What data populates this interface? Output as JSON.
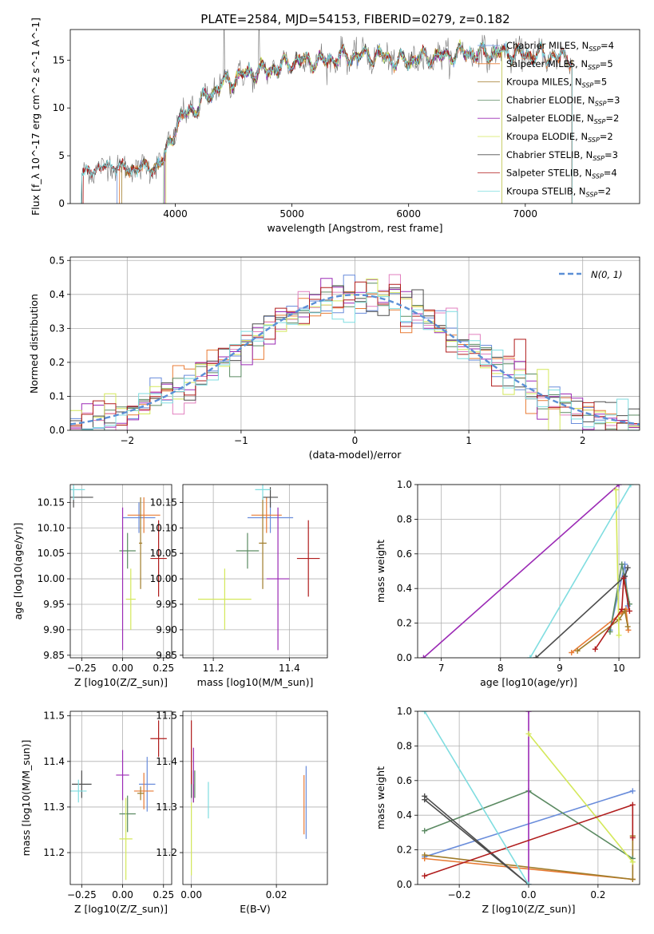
{
  "figure": {
    "title": "PLATE=2584, MJD=54153, FIBERID=0279, z=0.182"
  },
  "models": [
    {
      "key": "chab_miles",
      "label": "Chabrier MILES, N_SSP=4",
      "color": "#6a8ddb"
    },
    {
      "key": "salp_miles",
      "label": "Salpeter MILES, N_SSP=5",
      "color": "#e87b35"
    },
    {
      "key": "krou_miles",
      "label": "Kroupa MILES, N_SSP=5",
      "color": "#a07c2a"
    },
    {
      "key": "chab_elodie",
      "label": "Chabrier ELODIE, N_SSP=3",
      "color": "#5b8a62"
    },
    {
      "key": "salp_elodie",
      "label": "Salpeter ELODIE, N_SSP=2",
      "color": "#9b2ab5"
    },
    {
      "key": "krou_elodie",
      "label": "Kroupa ELODIE, N_SSP=2",
      "color": "#d4e85a"
    },
    {
      "key": "chab_stelib",
      "label": "Chabrier STELIB, N_SSP=3",
      "color": "#4d4d4d"
    },
    {
      "key": "salp_stelib",
      "label": "Salpeter STELIB, N_SSP=4",
      "color": "#b01c1c"
    },
    {
      "key": "krou_stelib",
      "label": "Kroupa STELIB, N_SSP=2",
      "color": "#7fdde0"
    }
  ],
  "chart_data": [
    {
      "id": "spectrum",
      "type": "line",
      "title": "PLATE=2584, MJD=54153, FIBERID=0279, z=0.182",
      "xlabel": "wavelength [Angstrom, rest frame]",
      "ylabel": "Flux [f_λ 10^-17 erg cm^-2 s^-1 A^-1]",
      "xlim": [
        3100,
        7980
      ],
      "ylim": [
        0,
        18.2
      ],
      "xticks": [
        4000,
        5000,
        6000,
        7000
      ],
      "yticks": [
        0,
        5,
        10,
        15
      ],
      "grid": false,
      "legend": "upper right",
      "data_continuum": {
        "x": [
          3200,
          3300,
          3400,
          3500,
          3600,
          3700,
          3800,
          3900,
          4000,
          4100,
          4200,
          4300,
          4400,
          4500,
          4600,
          4700,
          4800,
          4900,
          5000,
          5100,
          5200,
          5300,
          5400,
          5500,
          5600,
          5700,
          5800,
          5900,
          6000,
          6100,
          6200,
          6300,
          6400,
          6500,
          6600,
          6700,
          6800,
          6900,
          7000,
          7100,
          7200,
          7300,
          7400
        ],
        "y": [
          3.0,
          3.5,
          3.9,
          4.0,
          3.5,
          3.8,
          3.7,
          4.5,
          8.0,
          9.5,
          10.2,
          11.5,
          12.5,
          13.0,
          13.5,
          13.8,
          14.0,
          14.3,
          14.8,
          15.0,
          14.8,
          15.0,
          15.3,
          15.4,
          15.5,
          15.5,
          15.3,
          14.8,
          15.0,
          15.2,
          15.3,
          15.4,
          15.6,
          15.8,
          15.6,
          15.7,
          15.8,
          15.7,
          15.5,
          15.5,
          15.4,
          15.3,
          15.2
        ]
      },
      "model_start": {
        "chab_miles": 3500,
        "salp_miles": 3520,
        "krou_miles": 3540,
        "chab_elodie": 3900,
        "salp_elodie": 3910,
        "krou_elodie": 3920,
        "chab_stelib": 3200,
        "salp_stelib": 3210,
        "krou_stelib": 3190
      },
      "model_end": {
        "chab_miles": 7400,
        "salp_miles": 7400,
        "krou_miles": 7400,
        "chab_elodie": 6800,
        "salp_elodie": 6800,
        "krou_elodie": 6800,
        "chab_stelib": 7400,
        "salp_stelib": 7400,
        "krou_stelib": 7400
      }
    },
    {
      "id": "residuals",
      "type": "histogram",
      "xlabel": "(data-model)/error",
      "ylabel": "Normed distribution",
      "xlim": [
        -2.5,
        2.5
      ],
      "ylim": [
        0,
        0.51
      ],
      "xticks": [
        -2,
        -1,
        0,
        1,
        2
      ],
      "yticks": [
        0.0,
        0.1,
        0.2,
        0.3,
        0.4,
        0.5
      ],
      "grid": true,
      "legend": "upper right",
      "reference_label": "N(0, 1)",
      "bin_width": 0.1
    },
    {
      "id": "age_vs_Z",
      "type": "scatter",
      "xlabel": "Z [log10(Z/Z_sun)]",
      "ylabel": "age [log10(age/yr)]",
      "xlim": [
        -0.32,
        0.3
      ],
      "ylim": [
        9.845,
        10.185
      ],
      "xticks": [
        -0.25,
        0.0,
        0.25
      ],
      "yticks": [
        9.85,
        9.9,
        9.95,
        10.0,
        10.05,
        10.1,
        10.15
      ],
      "grid": true,
      "points": [
        {
          "model": "chab_miles",
          "x": 0.1,
          "xerr": 0.1,
          "y": 10.12,
          "yerr": 0.03
        },
        {
          "model": "salp_miles",
          "x": 0.13,
          "xerr": 0.1,
          "y": 10.125,
          "yerr": 0.035
        },
        {
          "model": "krou_miles",
          "x": 0.11,
          "xerr": 0.01,
          "y": 10.07,
          "yerr": 0.09
        },
        {
          "model": "chab_elodie",
          "x": 0.03,
          "xerr": 0.05,
          "y": 10.055,
          "yerr": 0.035
        },
        {
          "model": "salp_elodie",
          "x": 0.0,
          "xerr": 0.0,
          "y": 10.0,
          "yerr": 0.14
        },
        {
          "model": "krou_elodie",
          "x": 0.05,
          "xerr": 0.03,
          "y": 9.96,
          "yerr": 0.06
        },
        {
          "model": "chab_stelib",
          "x": -0.3,
          "xerr": 0.12,
          "y": 10.16,
          "yerr": 0.02
        },
        {
          "model": "salp_stelib",
          "x": 0.22,
          "xerr": 0.05,
          "y": 10.04,
          "yerr": 0.075
        },
        {
          "model": "krou_stelib",
          "x": -0.3,
          "xerr": 0.07,
          "y": 10.175,
          "yerr": 0.02
        }
      ]
    },
    {
      "id": "age_vs_mass",
      "type": "scatter",
      "xlabel": "mass [log10(M/M_sun)]",
      "ylabel": "",
      "xlim": [
        11.12,
        11.5
      ],
      "ylim": [
        9.845,
        10.185
      ],
      "xticks": [
        11.2,
        11.4
      ],
      "yticks": [
        9.85,
        9.9,
        9.95,
        10.0,
        10.05,
        10.1,
        10.15
      ],
      "grid": true,
      "points": [
        {
          "model": "chab_miles",
          "x": 11.35,
          "xerr": 0.06,
          "y": 10.12,
          "yerr": 0.03
        },
        {
          "model": "salp_miles",
          "x": 11.34,
          "xerr": 0.04,
          "y": 10.125,
          "yerr": 0.035
        },
        {
          "model": "krou_miles",
          "x": 11.33,
          "xerr": 0.01,
          "y": 10.07,
          "yerr": 0.09
        },
        {
          "model": "chab_elodie",
          "x": 11.29,
          "xerr": 0.03,
          "y": 10.055,
          "yerr": 0.035
        },
        {
          "model": "salp_elodie",
          "x": 11.37,
          "xerr": 0.03,
          "y": 10.0,
          "yerr": 0.14
        },
        {
          "model": "krou_elodie",
          "x": 11.23,
          "xerr": 0.07,
          "y": 9.96,
          "yerr": 0.06
        },
        {
          "model": "chab_stelib",
          "x": 11.35,
          "xerr": 0.02,
          "y": 10.16,
          "yerr": 0.02
        },
        {
          "model": "salp_stelib",
          "x": 11.45,
          "xerr": 0.03,
          "y": 10.04,
          "yerr": 0.075
        },
        {
          "model": "krou_stelib",
          "x": 11.33,
          "xerr": 0.02,
          "y": 10.175,
          "yerr": 0.02
        }
      ]
    },
    {
      "id": "weight_vs_age",
      "type": "line",
      "xlabel": "age [log10(age/yr)]",
      "ylabel": "mass weight",
      "xlim": [
        6.6,
        10.35
      ],
      "ylim": [
        0,
        1.0
      ],
      "xticks": [
        7,
        8,
        9,
        10
      ],
      "yticks": [
        0.0,
        0.2,
        0.4,
        0.6,
        0.8,
        1.0
      ],
      "grid": true,
      "series": [
        {
          "model": "chab_miles",
          "points": [
            [
              9.85,
              0.16
            ],
            [
              10.1,
              0.54
            ],
            [
              10.15,
              0.3
            ]
          ]
        },
        {
          "model": "salp_miles",
          "points": [
            [
              9.2,
              0.03
            ],
            [
              10.05,
              0.26
            ],
            [
              10.12,
              0.28
            ],
            [
              10.16,
              0.16
            ]
          ]
        },
        {
          "model": "krou_miles",
          "points": [
            [
              9.3,
              0.04
            ],
            [
              10.0,
              0.22
            ],
            [
              10.1,
              0.27
            ],
            [
              10.15,
              0.18
            ]
          ]
        },
        {
          "model": "chab_elodie",
          "points": [
            [
              9.85,
              0.15
            ],
            [
              10.05,
              0.54
            ],
            [
              10.18,
              0.31
            ]
          ]
        },
        {
          "model": "salp_elodie",
          "points": [
            [
              6.7,
              0.0
            ],
            [
              10.0,
              1.0
            ]
          ]
        },
        {
          "model": "krou_elodie",
          "points": [
            [
              9.95,
              0.97
            ],
            [
              10.0,
              0.13
            ]
          ]
        },
        {
          "model": "chab_stelib",
          "points": [
            [
              8.6,
              0.0
            ],
            [
              10.1,
              0.47
            ],
            [
              10.15,
              0.52
            ]
          ]
        },
        {
          "model": "salp_stelib",
          "points": [
            [
              9.6,
              0.05
            ],
            [
              10.05,
              0.28
            ],
            [
              10.08,
              0.46
            ],
            [
              10.18,
              0.27
            ]
          ]
        },
        {
          "model": "krou_stelib",
          "points": [
            [
              8.5,
              0.0
            ],
            [
              10.2,
              1.0
            ]
          ]
        }
      ]
    },
    {
      "id": "mass_vs_Z",
      "type": "scatter",
      "xlabel": "Z [log10(Z/Z_sun)]",
      "ylabel": "mass [log10(M/M_sun)]",
      "xlim": [
        -0.32,
        0.3
      ],
      "ylim": [
        11.13,
        11.51
      ],
      "xticks": [
        -0.25,
        0.0,
        0.25
      ],
      "yticks": [
        11.2,
        11.3,
        11.4,
        11.5
      ],
      "grid": true,
      "points": [
        {
          "model": "chab_miles",
          "x": 0.15,
          "xerr": 0.05,
          "y": 11.35,
          "yerr": 0.06
        },
        {
          "model": "salp_miles",
          "x": 0.13,
          "xerr": 0.06,
          "y": 11.335,
          "yerr": 0.04
        },
        {
          "model": "krou_miles",
          "x": 0.11,
          "xerr": 0.02,
          "y": 11.33,
          "yerr": 0.015
        },
        {
          "model": "chab_elodie",
          "x": 0.03,
          "xerr": 0.05,
          "y": 11.285,
          "yerr": 0.04
        },
        {
          "model": "salp_elodie",
          "x": 0.0,
          "xerr": 0.04,
          "y": 11.37,
          "yerr": 0.055
        },
        {
          "model": "krou_elodie",
          "x": 0.02,
          "xerr": 0.04,
          "y": 11.23,
          "yerr": 0.09
        },
        {
          "model": "chab_stelib",
          "x": -0.25,
          "xerr": 0.06,
          "y": 11.35,
          "yerr": 0.03
        },
        {
          "model": "salp_stelib",
          "x": 0.22,
          "xerr": 0.05,
          "y": 11.45,
          "yerr": 0.04
        },
        {
          "model": "krou_stelib",
          "x": -0.27,
          "xerr": 0.05,
          "y": 11.335,
          "yerr": 0.025
        }
      ]
    },
    {
      "id": "mass_vs_ebv",
      "type": "scatter",
      "xlabel": "E(B-V)",
      "ylabel": "",
      "xlim": [
        -0.002,
        0.032
      ],
      "ylim": [
        11.13,
        11.51
      ],
      "xticks": [
        0.0,
        0.02
      ],
      "yticks": [
        11.2,
        11.3,
        11.4,
        11.5
      ],
      "grid": true,
      "points": [
        {
          "model": "chab_miles",
          "x": 0.027,
          "xerr": 0.0,
          "y": 11.31,
          "yerr": 0.08
        },
        {
          "model": "salp_miles",
          "x": 0.0265,
          "xerr": 0.0,
          "y": 11.305,
          "yerr": 0.065
        },
        {
          "model": "krou_miles",
          "x": 0.0005,
          "xerr": 0.0,
          "y": 11.33,
          "yerr": 0.02
        },
        {
          "model": "chab_elodie",
          "x": 0.0008,
          "xerr": 0.0,
          "y": 11.35,
          "yerr": 0.03
        },
        {
          "model": "salp_elodie",
          "x": 0.0005,
          "xerr": 0.0,
          "y": 11.37,
          "yerr": 0.06
        },
        {
          "model": "krou_elodie",
          "x": 0.0,
          "xerr": 0.0,
          "y": 11.23,
          "yerr": 0.08
        },
        {
          "model": "chab_stelib",
          "x": 0.0,
          "xerr": 0.0,
          "y": 11.35,
          "yerr": 0.03
        },
        {
          "model": "salp_stelib",
          "x": 0.0,
          "xerr": 0.0,
          "y": 11.42,
          "yerr": 0.07
        },
        {
          "model": "krou_stelib",
          "x": 0.004,
          "xerr": 0.0,
          "y": 11.315,
          "yerr": 0.04
        }
      ]
    },
    {
      "id": "weight_vs_Z",
      "type": "line",
      "xlabel": "Z [log10(Z/Z_sun)]",
      "ylabel": "mass weight",
      "xlim": [
        -0.32,
        0.32
      ],
      "ylim": [
        0,
        1.0
      ],
      "xticks": [
        -0.2,
        0.0,
        0.2
      ],
      "yticks": [
        0.0,
        0.2,
        0.4,
        0.6,
        0.8,
        1.0
      ],
      "grid": true,
      "series": [
        {
          "model": "chab_miles",
          "points": [
            [
              -0.3,
              0.16
            ],
            [
              0.3,
              0.54
            ]
          ]
        },
        {
          "model": "salp_miles",
          "points": [
            [
              -0.3,
              0.15
            ],
            [
              0.3,
              0.03
            ],
            [
              0.3,
              0.28
            ]
          ]
        },
        {
          "model": "krou_miles",
          "points": [
            [
              -0.3,
              0.17
            ],
            [
              0.3,
              0.03
            ],
            [
              0.3,
              0.28
            ]
          ]
        },
        {
          "model": "chab_elodie",
          "points": [
            [
              -0.3,
              0.31
            ],
            [
              0.0,
              0.54
            ],
            [
              0.3,
              0.15
            ]
          ]
        },
        {
          "model": "salp_elodie",
          "points": [
            [
              0.0,
              0.0
            ],
            [
              0.0,
              1.0
            ]
          ]
        },
        {
          "model": "krou_elodie",
          "points": [
            [
              0.0,
              0.87
            ],
            [
              0.3,
              0.13
            ]
          ]
        },
        {
          "model": "chab_stelib",
          "points": [
            [
              -0.3,
              0.51
            ],
            [
              0.0,
              0.0
            ],
            [
              -0.3,
              0.49
            ]
          ]
        },
        {
          "model": "salp_stelib",
          "points": [
            [
              -0.3,
              0.05
            ],
            [
              0.3,
              0.46
            ],
            [
              0.3,
              0.27
            ]
          ]
        },
        {
          "model": "krou_stelib",
          "points": [
            [
              -0.3,
              1.0
            ],
            [
              0.0,
              0.0
            ]
          ]
        }
      ]
    }
  ]
}
